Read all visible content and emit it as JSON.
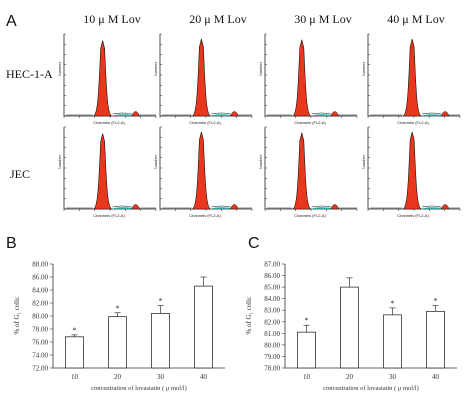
{
  "panel_labels": {
    "a": "A",
    "b": "B",
    "c": "C"
  },
  "panel_a": {
    "column_labels": [
      "10 μ M  Lov",
      "20 μ M  Lov",
      "30 μ M  Lov",
      "40 μ M  Lov"
    ],
    "row_labels": [
      "HEC-1-A",
      "JEC"
    ],
    "histogram_xlabel": "Channels (FL2-A)",
    "histogram_ylabel": "Number",
    "colors": {
      "g1_fill": "#e8371c",
      "s_fill": "#2aa6a6",
      "g2_fill": "#e8371c",
      "outline": "#111111"
    }
  },
  "chart_data": [
    {
      "type": "bar",
      "panel": "B",
      "categories": [
        "10",
        "20",
        "30",
        "40"
      ],
      "values": [
        76.8,
        79.9,
        80.4,
        84.6
      ],
      "errors": [
        0.3,
        0.6,
        1.2,
        1.4
      ],
      "significance": [
        "*",
        "*",
        "*",
        ""
      ],
      "xlabel": "concentration of lovastatin ( μ mol/l)",
      "ylabel": "% of G₁ cells",
      "ylim": [
        72.0,
        88.0
      ],
      "yticks": [
        "72.00",
        "74.00",
        "76.00",
        "78.00",
        "80.00",
        "82.00",
        "84.00",
        "86.00",
        "88.00"
      ],
      "ytick_values": [
        72,
        74,
        76,
        78,
        80,
        82,
        84,
        86,
        88
      ]
    },
    {
      "type": "bar",
      "panel": "C",
      "categories": [
        "10",
        "20",
        "30",
        "40"
      ],
      "values": [
        81.1,
        85.0,
        82.6,
        82.9
      ],
      "errors": [
        0.6,
        0.8,
        0.6,
        0.5
      ],
      "significance": [
        "*",
        "",
        "*",
        "*"
      ],
      "xlabel": "concentration of lovastatin ( μ mol/l)",
      "ylabel": "% of G₁ cells",
      "ylim": [
        78.0,
        87.0
      ],
      "yticks": [
        "78.00",
        "79.00",
        "80.00",
        "81.00",
        "82.00",
        "83.00",
        "84.00",
        "85.00",
        "86.00",
        "87.00"
      ],
      "ytick_values": [
        78,
        79,
        80,
        81,
        82,
        83,
        84,
        85,
        86,
        87
      ]
    }
  ]
}
